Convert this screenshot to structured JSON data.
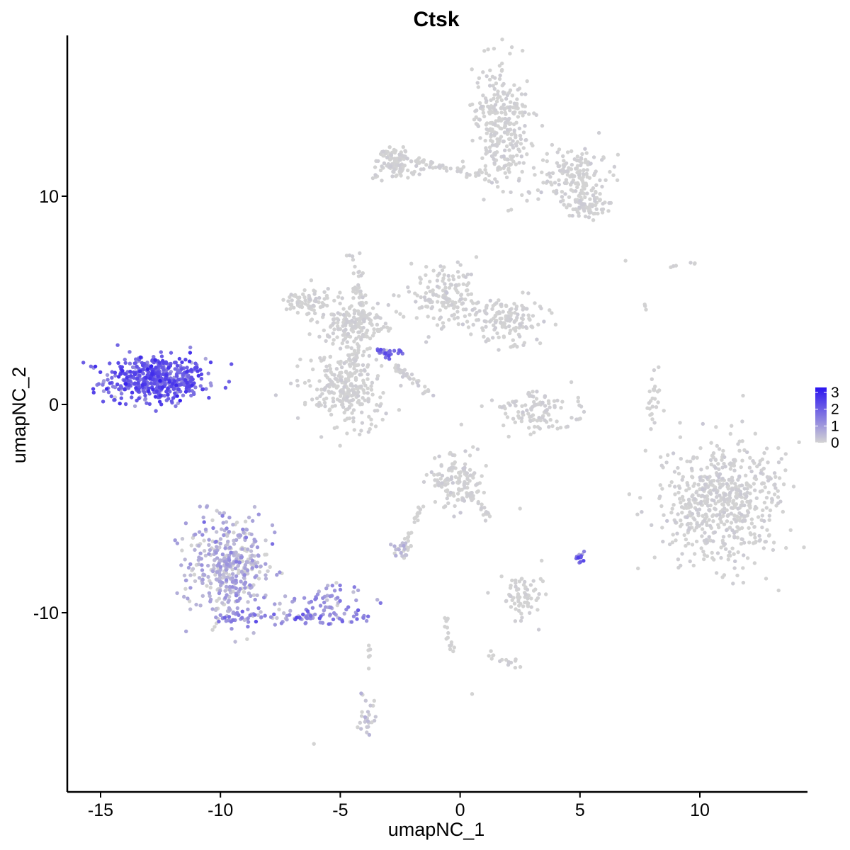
{
  "chart_data": {
    "type": "scatter",
    "title": "Ctsk",
    "xlabel": "umapNC_1",
    "ylabel": "umapNC_2",
    "xlim": [
      -16.3,
      14.5
    ],
    "ylim": [
      -18.2,
      17.5
    ],
    "x_ticks": [
      -15,
      -10,
      -5,
      0,
      5,
      10
    ],
    "x_tick_labels": [
      "-15",
      "-10",
      "-5",
      "0",
      "5",
      "10"
    ],
    "y_ticks": [
      10,
      0,
      -10
    ],
    "y_tick_labels": [
      "10",
      "0",
      "-10"
    ],
    "color_scale": {
      "low_color": "#d3d3d3",
      "high_color": "#2b14f0",
      "min": 0,
      "max": 3.3,
      "ticks": [
        3,
        2,
        1,
        0
      ],
      "tick_labels": [
        "3",
        "2",
        "1",
        "0"
      ]
    },
    "clusters": [
      {
        "x": -12.7,
        "y": 1.2,
        "sx": 1.05,
        "sy": 0.55,
        "n": 520,
        "expr_mean": 1.7,
        "expr_sd": 0.55
      },
      {
        "x": -9.6,
        "y": -7.8,
        "sx": 0.9,
        "sy": 1.3,
        "n": 420,
        "expr_mean": 0.35,
        "expr_sd": 0.35
      },
      {
        "x": -5.7,
        "y": -9.5,
        "sx": 0.9,
        "sy": 0.45,
        "n": 60,
        "expr_mean": 0.75,
        "expr_sd": 0.4
      },
      {
        "x": 1.7,
        "y": 13.5,
        "sx": 0.6,
        "sy": 1.4,
        "n": 300,
        "expr_mean": 0,
        "expr_sd": 0.03
      },
      {
        "x": -2.6,
        "y": 11.6,
        "sx": 0.55,
        "sy": 0.45,
        "n": 90,
        "expr_mean": 0,
        "expr_sd": 0.03
      },
      {
        "x": 4.8,
        "y": 11.0,
        "sx": 0.75,
        "sy": 0.7,
        "n": 160,
        "expr_mean": 0,
        "expr_sd": 0.03
      },
      {
        "x": 5.3,
        "y": 9.5,
        "sx": 0.6,
        "sy": 0.4,
        "n": 70,
        "expr_mean": 0,
        "expr_sd": 0.03
      },
      {
        "x": -6.4,
        "y": 4.9,
        "sx": 0.45,
        "sy": 0.35,
        "n": 70,
        "expr_mean": 0,
        "expr_sd": 0.03
      },
      {
        "x": -4.4,
        "y": 3.9,
        "sx": 0.85,
        "sy": 0.6,
        "n": 170,
        "expr_mean": 0,
        "expr_sd": 0.03
      },
      {
        "x": -0.6,
        "y": 5.1,
        "sx": 0.7,
        "sy": 0.7,
        "n": 150,
        "expr_mean": 0,
        "expr_sd": 0.04
      },
      {
        "x": 1.9,
        "y": 4.1,
        "sx": 0.8,
        "sy": 0.5,
        "n": 140,
        "expr_mean": 0,
        "expr_sd": 0.03
      },
      {
        "x": -4.7,
        "y": 0.7,
        "sx": 0.85,
        "sy": 0.85,
        "n": 240,
        "expr_mean": 0,
        "expr_sd": 0.03
      },
      {
        "x": -2.9,
        "y": 2.5,
        "sx": 0.3,
        "sy": 0.15,
        "n": 25,
        "expr_mean": 1.5,
        "expr_sd": 0.4
      },
      {
        "x": 3.3,
        "y": -0.3,
        "sx": 0.9,
        "sy": 0.45,
        "n": 110,
        "expr_mean": 0,
        "expr_sd": 0.03
      },
      {
        "x": 10.9,
        "y": -4.7,
        "sx": 1.25,
        "sy": 1.55,
        "n": 580,
        "expr_mean": 0,
        "expr_sd": 0.04
      },
      {
        "x": -0.2,
        "y": -3.7,
        "sx": 0.55,
        "sy": 0.6,
        "n": 130,
        "expr_mean": 0,
        "expr_sd": 0.05
      },
      {
        "x": 2.6,
        "y": -9.2,
        "sx": 0.45,
        "sy": 0.5,
        "n": 70,
        "expr_mean": 0,
        "expr_sd": 0.03
      },
      {
        "x": -2.5,
        "y": -6.9,
        "sx": 0.3,
        "sy": 0.2,
        "n": 25,
        "expr_mean": 0.1,
        "expr_sd": 0.2
      },
      {
        "x": 5.0,
        "y": -7.3,
        "sx": 0.12,
        "sy": 0.18,
        "n": 14,
        "expr_mean": 1.6,
        "expr_sd": 0.6
      },
      {
        "x": -3.9,
        "y": -15.0,
        "sx": 0.25,
        "sy": 0.6,
        "n": 28,
        "expr_mean": 0.05,
        "expr_sd": 0.15
      },
      {
        "x": 8.1,
        "y": 0.3,
        "sx": 0.15,
        "sy": 0.6,
        "n": 25,
        "expr_mean": 0,
        "expr_sd": 0.02
      }
    ],
    "segments": [
      {
        "from": [
          -10.0,
          -10.2
        ],
        "to": [
          -4.0,
          -10.3
        ],
        "spread": 0.3,
        "n": 90,
        "expr_mean": 0.9,
        "expr_sd": 0.5
      },
      {
        "from": [
          -3.4,
          12.1
        ],
        "to": [
          0.8,
          11.0
        ],
        "spread": 0.2,
        "n": 55,
        "expr_mean": 0,
        "expr_sd": 0.03
      },
      {
        "from": [
          -4.4,
          7.3
        ],
        "to": [
          -4.0,
          3.0
        ],
        "spread": 0.25,
        "n": 45,
        "expr_mean": 0,
        "expr_sd": 0.03
      },
      {
        "from": [
          -4.2,
          2.8
        ],
        "to": [
          -4.9,
          0.6
        ],
        "spread": 0.35,
        "n": 45,
        "expr_mean": 0,
        "expr_sd": 0.03
      },
      {
        "from": [
          -2.7,
          1.8
        ],
        "to": [
          -1.2,
          0.5
        ],
        "spread": 0.15,
        "n": 35,
        "expr_mean": 0,
        "expr_sd": 0.05
      },
      {
        "from": [
          -1.7,
          -5.0
        ],
        "to": [
          -2.2,
          -6.5
        ],
        "spread": 0.12,
        "n": 18,
        "expr_mean": 0,
        "expr_sd": 0.03
      },
      {
        "from": [
          0.2,
          -4.0
        ],
        "to": [
          1.2,
          -5.5
        ],
        "spread": 0.2,
        "n": 22,
        "expr_mean": 0,
        "expr_sd": 0.03
      },
      {
        "from": [
          -0.6,
          -10.3
        ],
        "to": [
          -0.3,
          -12.0
        ],
        "spread": 0.12,
        "n": 16,
        "expr_mean": 0,
        "expr_sd": 0.03
      },
      {
        "from": [
          1.1,
          -12.0
        ],
        "to": [
          2.6,
          -12.6
        ],
        "spread": 0.2,
        "n": 16,
        "expr_mean": 0,
        "expr_sd": 0.1
      },
      {
        "from": [
          -3.8,
          -11.5
        ],
        "to": [
          -3.8,
          -12.8
        ],
        "spread": 0.08,
        "n": 6,
        "expr_mean": 0,
        "expr_sd": 0.03
      },
      {
        "from": [
          10.0,
          6.8
        ],
        "to": [
          8.6,
          6.6
        ],
        "spread": 0.1,
        "n": 6,
        "expr_mean": 0,
        "expr_sd": 0.02
      },
      {
        "from": [
          7.7,
          4.8
        ],
        "to": [
          7.8,
          4.6
        ],
        "spread": 0.05,
        "n": 3,
        "expr_mean": 0,
        "expr_sd": 0.02
      }
    ],
    "outliers": [
      [
        6.9,
        6.9
      ],
      [
        -6.1,
        -16.3
      ],
      [
        0.5,
        -13.9
      ],
      [
        2.5,
        -5.0
      ],
      [
        3.4,
        -7.5
      ],
      [
        8.5,
        -0.3
      ]
    ]
  }
}
